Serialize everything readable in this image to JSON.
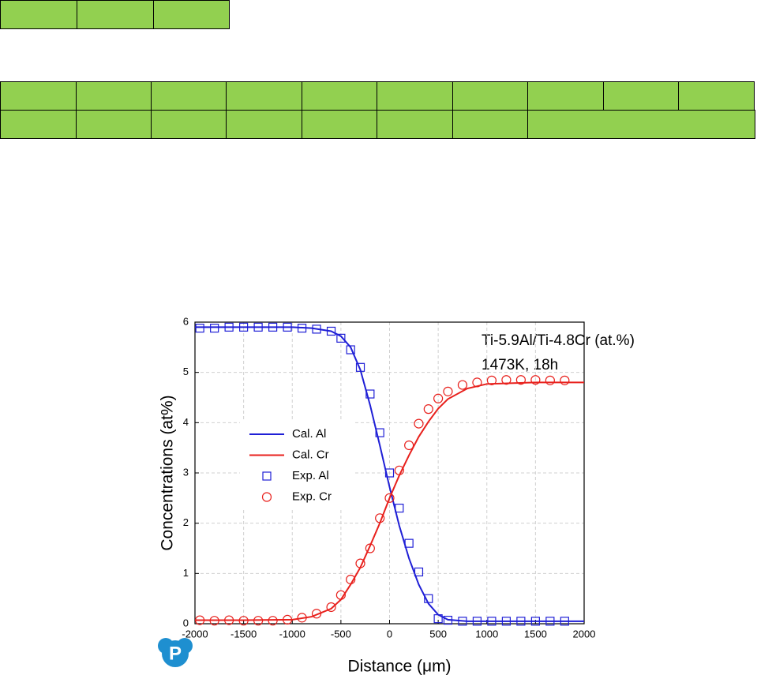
{
  "chart_data": {
    "type": "line",
    "annotations": [
      "Ti-5.9Al/Ti-4.8Cr (at.%)",
      "1473K, 18h"
    ],
    "xlabel": "Distance (μm)",
    "ylabel": "Concentrations (at%)",
    "xlim": [
      -2000,
      2000
    ],
    "xticks": [
      -2000,
      -1500,
      -1000,
      -500,
      0,
      500,
      1000,
      1500,
      2000
    ],
    "ylim": [
      0,
      6
    ],
    "yticks": [
      0,
      1,
      2,
      3,
      4,
      5,
      6
    ],
    "grid": true,
    "logo": "P",
    "series": [
      {
        "name": "Cal. Al",
        "color": "#1f1fd6",
        "mark": "line",
        "x": [
          -2000,
          -1500,
          -1000,
          -800,
          -600,
          -500,
          -400,
          -300,
          -200,
          -100,
          0,
          100,
          200,
          300,
          400,
          500,
          600,
          800,
          1000,
          1500,
          2000
        ],
        "values": [
          5.9,
          5.9,
          5.9,
          5.88,
          5.82,
          5.72,
          5.5,
          5.05,
          4.35,
          3.55,
          2.72,
          1.95,
          1.3,
          0.78,
          0.4,
          0.18,
          0.08,
          0.05,
          0.05,
          0.05,
          0.05
        ]
      },
      {
        "name": "Cal. Cr",
        "color": "#e8201c",
        "mark": "line",
        "x": [
          -2000,
          -1500,
          -1000,
          -800,
          -600,
          -500,
          -400,
          -300,
          -200,
          -100,
          0,
          100,
          200,
          300,
          400,
          500,
          600,
          800,
          1000,
          1500,
          2000
        ],
        "values": [
          0.07,
          0.07,
          0.08,
          0.14,
          0.3,
          0.48,
          0.78,
          1.12,
          1.55,
          2.0,
          2.5,
          2.95,
          3.35,
          3.72,
          4.02,
          4.28,
          4.47,
          4.68,
          4.77,
          4.8,
          4.8
        ]
      },
      {
        "name": "Exp. Al",
        "color": "#1f1fd6",
        "mark": "square",
        "x": [
          -1950,
          -1800,
          -1650,
          -1500,
          -1350,
          -1200,
          -1050,
          -900,
          -750,
          -600,
          -500,
          -400,
          -300,
          -200,
          -100,
          0,
          100,
          200,
          300,
          400,
          500,
          600,
          750,
          900,
          1050,
          1200,
          1350,
          1500,
          1650,
          1800
        ],
        "values": [
          5.88,
          5.88,
          5.9,
          5.9,
          5.9,
          5.9,
          5.9,
          5.88,
          5.86,
          5.82,
          5.68,
          5.45,
          5.1,
          4.57,
          3.8,
          3.0,
          2.3,
          1.6,
          1.03,
          0.5,
          0.1,
          0.07,
          0.05,
          0.05,
          0.05,
          0.05,
          0.05,
          0.05,
          0.05,
          0.05
        ]
      },
      {
        "name": "Exp. Cr",
        "color": "#e8201c",
        "mark": "circle",
        "x": [
          -1950,
          -1800,
          -1650,
          -1500,
          -1350,
          -1200,
          -1050,
          -900,
          -750,
          -600,
          -500,
          -400,
          -300,
          -200,
          -100,
          0,
          100,
          200,
          300,
          400,
          500,
          600,
          750,
          900,
          1050,
          1200,
          1350,
          1500,
          1650,
          1800
        ],
        "values": [
          0.07,
          0.06,
          0.07,
          0.06,
          0.06,
          0.06,
          0.08,
          0.12,
          0.2,
          0.33,
          0.57,
          0.88,
          1.2,
          1.5,
          2.1,
          2.5,
          3.05,
          3.55,
          3.98,
          4.27,
          4.48,
          4.62,
          4.75,
          4.8,
          4.84,
          4.85,
          4.85,
          4.85,
          4.84,
          4.84
        ]
      }
    ]
  }
}
